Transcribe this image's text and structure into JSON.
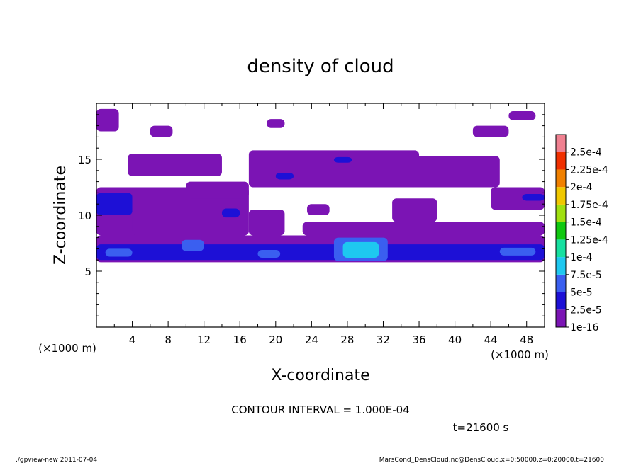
{
  "chart_data": {
    "type": "heatmap",
    "title": "density of cloud",
    "xlabel": "X-coordinate",
    "ylabel": "Z-coordinate",
    "x_unit": "(×1000 m)",
    "x_unit_right": "(×1000 m)",
    "x_unit_left": "(×1000 m)",
    "xlim": [
      0,
      50
    ],
    "ylim": [
      0,
      20
    ],
    "x_ticks": [
      "4",
      "8",
      "12",
      "16",
      "20",
      "24",
      "28",
      "32",
      "36",
      "40",
      "44",
      "48"
    ],
    "y_ticks": [
      "5",
      "10",
      "15"
    ],
    "colorbar": {
      "labels": [
        "1e-16",
        "2.5e-5",
        "5e-5",
        "7.5e-5",
        "1e-4",
        "1.25e-4",
        "1.5e-4",
        "1.75e-4",
        "2e-4",
        "2.25e-4",
        "2.5e-4"
      ],
      "colors": [
        "#7b14b4",
        "#1d10d6",
        "#3a5ff0",
        "#1ec8f0",
        "#16e0a0",
        "#10c810",
        "#a0e010",
        "#f0c800",
        "#f08000",
        "#f03000",
        "#f08090"
      ]
    },
    "contour_interval": "CONTOUR INTERVAL = 1.000E-04",
    "time_label": "t=21600 s",
    "cells": [
      {
        "x0": 0,
        "x1": 50,
        "z0": 5.8,
        "z1": 8.2,
        "level": 0
      },
      {
        "x0": 0,
        "x1": 5,
        "z0": 8.2,
        "z1": 12.5,
        "level": 0
      },
      {
        "x0": 0,
        "x1": 4,
        "z0": 10,
        "z1": 12,
        "level": 1
      },
      {
        "x0": 0,
        "x1": 50,
        "z0": 6,
        "z1": 7.4,
        "level": 1
      },
      {
        "x0": 1,
        "x1": 4,
        "z0": 6.3,
        "z1": 7,
        "level": 2
      },
      {
        "x0": 9.5,
        "x1": 12,
        "z0": 6.8,
        "z1": 7.8,
        "level": 2
      },
      {
        "x0": 26.5,
        "x1": 32.5,
        "z0": 5.9,
        "z1": 8,
        "level": 2
      },
      {
        "x0": 27.5,
        "x1": 31.5,
        "z0": 6.2,
        "z1": 7.6,
        "level": 3
      },
      {
        "x0": 18,
        "x1": 20.5,
        "z0": 6.2,
        "z1": 6.9,
        "level": 2
      },
      {
        "x0": 45,
        "x1": 49,
        "z0": 6.4,
        "z1": 7.1,
        "level": 2
      },
      {
        "x0": 5.5,
        "x1": 9,
        "z0": 8.5,
        "z1": 10,
        "level": 1
      },
      {
        "x0": 4,
        "x1": 17,
        "z0": 8.2,
        "z1": 12.5,
        "level": 0
      },
      {
        "x0": 14,
        "x1": 16,
        "z0": 9.8,
        "z1": 10.6,
        "level": 1
      },
      {
        "x0": 17,
        "x1": 36,
        "z0": 12.5,
        "z1": 15.8,
        "level": 0
      },
      {
        "x0": 20,
        "x1": 22,
        "z0": 13.2,
        "z1": 13.8,
        "level": 1
      },
      {
        "x0": 26.5,
        "x1": 28.5,
        "z0": 14.7,
        "z1": 15.2,
        "level": 1
      },
      {
        "x0": 3.5,
        "x1": 14,
        "z0": 13.5,
        "z1": 15.5,
        "level": 0
      },
      {
        "x0": 10,
        "x1": 17,
        "z0": 11.5,
        "z1": 13,
        "level": 0
      },
      {
        "x0": 35,
        "x1": 45,
        "z0": 12.5,
        "z1": 15.3,
        "level": 0
      },
      {
        "x0": 44,
        "x1": 50,
        "z0": 10.5,
        "z1": 12.5,
        "level": 0
      },
      {
        "x0": 47.5,
        "x1": 50,
        "z0": 11.3,
        "z1": 11.9,
        "level": 1
      },
      {
        "x0": 23,
        "x1": 50,
        "z0": 8.2,
        "z1": 9.4,
        "level": 0
      },
      {
        "x0": 33,
        "x1": 38,
        "z0": 9.4,
        "z1": 11.5,
        "level": 0
      },
      {
        "x0": 0,
        "x1": 2.5,
        "z0": 17.5,
        "z1": 19.5,
        "level": 0
      },
      {
        "x0": 6,
        "x1": 8.5,
        "z0": 17,
        "z1": 18,
        "level": 0
      },
      {
        "x0": 19,
        "x1": 21,
        "z0": 17.8,
        "z1": 18.6,
        "level": 0
      },
      {
        "x0": 42,
        "x1": 46,
        "z0": 17,
        "z1": 18,
        "level": 0
      },
      {
        "x0": 46,
        "x1": 49,
        "z0": 18.5,
        "z1": 19.3,
        "level": 0
      },
      {
        "x0": 23.5,
        "x1": 26,
        "z0": 10,
        "z1": 11,
        "level": 0
      },
      {
        "x0": 17,
        "x1": 21,
        "z0": 8.2,
        "z1": 10.5,
        "level": 0
      }
    ]
  },
  "footer": {
    "left": "./gpview-new   2011-07-04",
    "right": "MarsCond_DensCloud.nc@DensCloud,x=0:50000,z=0:20000,t=21600"
  }
}
